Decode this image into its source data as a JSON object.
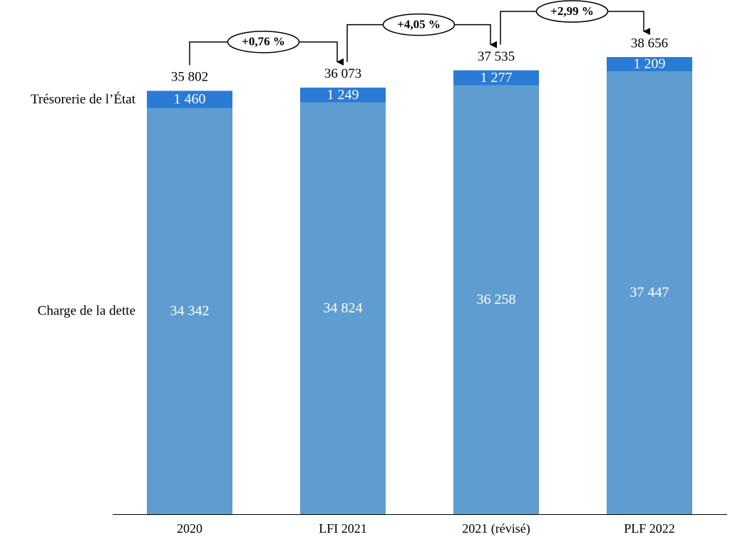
{
  "chart_data": {
    "type": "bar",
    "stacked": true,
    "categories": [
      "2020",
      "LFI 2021",
      "2021 (révisé)",
      "PLF 2022"
    ],
    "series": [
      {
        "name": "Charge de la dette",
        "color": "#5f9dd1",
        "values": [
          34342,
          34824,
          36258,
          37447
        ],
        "value_labels": [
          "34 342",
          "34 824",
          "36 258",
          "37 447"
        ]
      },
      {
        "name": "Trésorerie de l’État",
        "color": "#2a7bd6",
        "values": [
          1460,
          1249,
          1277,
          1209
        ],
        "value_labels": [
          "1 460",
          "1 249",
          "1 277",
          "1 209"
        ]
      }
    ],
    "totals": [
      35802,
      36073,
      37535,
      38656
    ],
    "total_labels": [
      "35 802",
      "36 073",
      "37 535",
      "38 656"
    ],
    "annotations": [
      "+0,76 %",
      "+4,05 %",
      "+2,99 %"
    ]
  }
}
